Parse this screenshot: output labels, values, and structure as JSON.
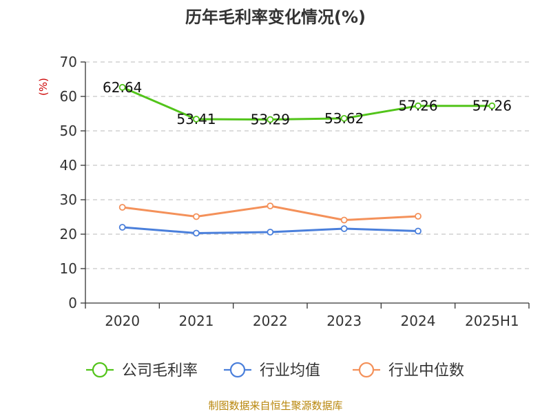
{
  "chart_data": {
    "type": "line",
    "title": "历年毛利率变化情况(%)",
    "xlabel": "",
    "ylabel": "(%)",
    "categories": [
      "2020",
      "2021",
      "2022",
      "2023",
      "2024",
      "2025H1"
    ],
    "ylim": [
      0,
      70
    ],
    "yticks": [
      0,
      10,
      20,
      30,
      40,
      50,
      60,
      70
    ],
    "grid": true,
    "legend_position": "bottom",
    "series": [
      {
        "name": "公司毛利率",
        "color": "#52c41a",
        "values": [
          62.64,
          53.41,
          53.29,
          53.62,
          57.26,
          57.26
        ],
        "labels": [
          "62.64",
          "53.41",
          "53.29",
          "53.62",
          "57.26",
          "57.26"
        ]
      },
      {
        "name": "行业均值",
        "color": "#4a7fdb",
        "values": [
          22.0,
          20.3,
          20.6,
          21.6,
          20.9,
          null
        ]
      },
      {
        "name": "行业中位数",
        "color": "#f4915a",
        "values": [
          27.8,
          25.1,
          28.2,
          24.1,
          25.2,
          null
        ]
      }
    ]
  },
  "source": "制图数据来自恒生聚源数据库"
}
